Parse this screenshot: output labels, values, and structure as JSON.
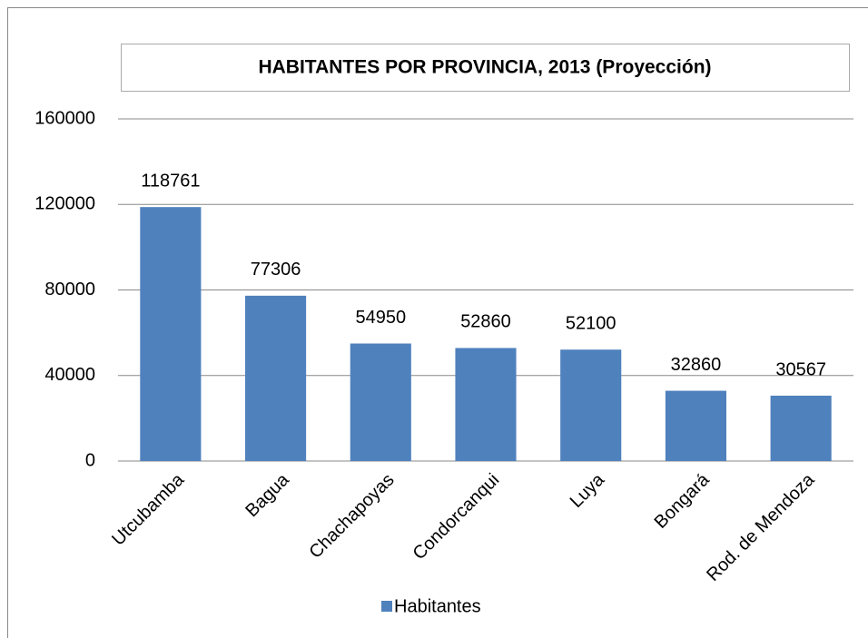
{
  "chart_data": {
    "type": "bar",
    "title": "HABITANTES POR PROVINCIA, 2013 (Proyección)",
    "categories": [
      "Utcubamba",
      "Bagua",
      "Chachapoyas",
      "Condorcanqui",
      "Luya",
      "Bongará",
      "Rod. de Mendoza"
    ],
    "series": [
      {
        "name": "Habitantes",
        "color": "#4f81bd",
        "values": [
          118761,
          77306,
          54950,
          52860,
          52100,
          32860,
          30567
        ]
      }
    ],
    "ylim": [
      0,
      160000
    ],
    "yticks": [
      0,
      40000,
      80000,
      120000,
      160000
    ],
    "grid": true,
    "legend": "bottom"
  }
}
